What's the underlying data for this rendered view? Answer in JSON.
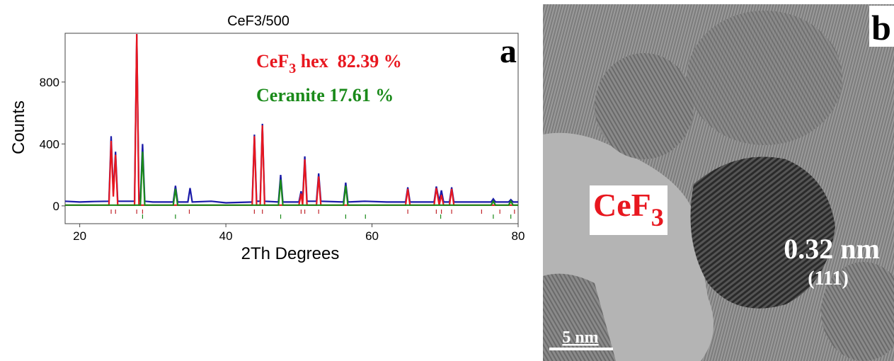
{
  "chart_data": {
    "type": "line",
    "title": "CeF3/500",
    "xlabel": "2Th Degrees",
    "ylabel": "Counts",
    "panel_label": "a",
    "xlim": [
      18,
      80
    ],
    "xticks": [
      20,
      40,
      60,
      80
    ],
    "ylim": [
      -115,
      1115
    ],
    "yticks": [
      0,
      400,
      800
    ],
    "series": [
      {
        "color": "#1a1aa8",
        "x": [
          18,
          20,
          22,
          24.0,
          24.3,
          24.6,
          24.9,
          25.2,
          27.5,
          27.8,
          28.1,
          28.3,
          28.6,
          28.9,
          30,
          32.8,
          33.1,
          33.4,
          34.8,
          35.1,
          35.4,
          38,
          40,
          43.6,
          43.9,
          44.2,
          44.7,
          45.0,
          45.3,
          47.2,
          47.5,
          47.8,
          50.0,
          50.3,
          50.5,
          50.8,
          51.1,
          52.4,
          52.7,
          53.0,
          56.1,
          56.4,
          56.7,
          59,
          62,
          64.6,
          64.9,
          65.2,
          68.5,
          68.8,
          69.2,
          69.5,
          69.8,
          70.6,
          70.9,
          71.2,
          74,
          76.3,
          76.6,
          76.9,
          78.7,
          79.0,
          79.3,
          80
        ],
        "values": [
          30,
          25,
          28,
          30,
          450,
          80,
          350,
          30,
          30,
          1110,
          40,
          30,
          400,
          30,
          25,
          25,
          130,
          25,
          25,
          115,
          25,
          30,
          20,
          25,
          460,
          30,
          30,
          530,
          30,
          25,
          200,
          25,
          25,
          95,
          30,
          320,
          30,
          30,
          210,
          30,
          25,
          150,
          25,
          30,
          25,
          25,
          120,
          25,
          25,
          125,
          30,
          100,
          25,
          25,
          120,
          25,
          25,
          25,
          45,
          25,
          25,
          40,
          25,
          25
        ]
      },
      {
        "color": "#e8171f",
        "x": [
          18,
          24.0,
          24.3,
          24.6,
          24.9,
          25.2,
          27.5,
          27.8,
          28.1,
          43.6,
          43.9,
          44.2,
          44.7,
          45.0,
          45.3,
          50.0,
          50.3,
          50.5,
          50.8,
          51.1,
          52.4,
          52.7,
          53.0,
          64.6,
          64.9,
          65.2,
          68.5,
          68.8,
          69.2,
          69.5,
          69.8,
          70.6,
          70.9,
          71.2,
          80
        ],
        "values": [
          5,
          5,
          420,
          60,
          330,
          5,
          5,
          1110,
          5,
          5,
          450,
          5,
          5,
          520,
          5,
          5,
          80,
          5,
          300,
          5,
          5,
          190,
          5,
          5,
          110,
          5,
          5,
          115,
          5,
          70,
          5,
          5,
          110,
          5,
          5
        ]
      },
      {
        "color": "#1a8a1a",
        "x": [
          18,
          28.3,
          28.6,
          28.9,
          32.8,
          33.1,
          33.4,
          47.2,
          47.5,
          47.8,
          56.1,
          56.4,
          56.7,
          76.3,
          76.6,
          76.9,
          78.7,
          79.0,
          79.3,
          80
        ],
        "values": [
          5,
          5,
          350,
          5,
          5,
          110,
          5,
          5,
          170,
          5,
          5,
          130,
          5,
          5,
          30,
          5,
          5,
          30,
          5,
          5
        ]
      }
    ],
    "reflections": [
      {
        "color": "#c0272d",
        "x": [
          24.3,
          24.9,
          27.8,
          28.6,
          35.0,
          43.9,
          45.0,
          50.3,
          50.8,
          52.7,
          64.9,
          68.8,
          69.5,
          70.9,
          75.0,
          77.5,
          79.5
        ]
      },
      {
        "color": "#1a8a1a",
        "x": [
          28.6,
          33.1,
          47.5,
          56.4,
          59.1,
          69.4,
          76.6,
          79.0
        ]
      }
    ],
    "annotations": [
      {
        "parts": [
          "CeF",
          "3",
          " hex  82.39 %"
        ],
        "color": "#e8171f"
      },
      {
        "parts": [
          "Ceranite 17.61 %"
        ],
        "color": "#1a8a1a"
      }
    ]
  },
  "image": {
    "panel_label": "b",
    "material": [
      "CeF",
      "3"
    ],
    "spacing": "0.32 nm",
    "plane": "(111)",
    "scale_bar": "5 nm"
  }
}
